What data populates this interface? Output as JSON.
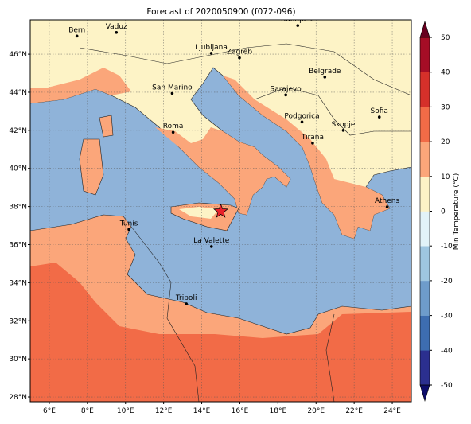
{
  "map": {
    "title": "Forecast of 2020050900 (f072-096)",
    "xlim": [
      5,
      25
    ],
    "ylim": [
      27.75,
      47.8
    ],
    "xticks": [
      {
        "value": 6,
        "label": "6°E"
      },
      {
        "value": 8,
        "label": "8°E"
      },
      {
        "value": 10,
        "label": "10°E"
      },
      {
        "value": 12,
        "label": "12°E"
      },
      {
        "value": 14,
        "label": "14°E"
      },
      {
        "value": 16,
        "label": "16°E"
      },
      {
        "value": 18,
        "label": "18°E"
      },
      {
        "value": 20,
        "label": "20°E"
      },
      {
        "value": 22,
        "label": "22°E"
      },
      {
        "value": 24,
        "label": "24°E"
      }
    ],
    "yticks": [
      {
        "value": 28,
        "label": "28°N"
      },
      {
        "value": 30,
        "label": "30°N"
      },
      {
        "value": 32,
        "label": "32°N"
      },
      {
        "value": 34,
        "label": "34°N"
      },
      {
        "value": 36,
        "label": "36°N"
      },
      {
        "value": 38,
        "label": "38°N"
      },
      {
        "value": 40,
        "label": "40°N"
      },
      {
        "value": 42,
        "label": "42°N"
      },
      {
        "value": 44,
        "label": "44°N"
      },
      {
        "value": 46,
        "label": "46°N"
      }
    ],
    "grid": true,
    "cities": [
      {
        "name": "Bern",
        "lon": 7.45,
        "lat": 46.95
      },
      {
        "name": "Vaduz",
        "lon": 9.52,
        "lat": 47.14
      },
      {
        "name": "Budapest",
        "lon": 19.04,
        "lat": 47.5
      },
      {
        "name": "Ljubljana",
        "lon": 14.5,
        "lat": 46.05
      },
      {
        "name": "Zagreb",
        "lon": 15.98,
        "lat": 45.81
      },
      {
        "name": "Belgrade",
        "lon": 20.46,
        "lat": 44.8
      },
      {
        "name": "Sarajevo",
        "lon": 18.41,
        "lat": 43.86
      },
      {
        "name": "San Marino",
        "lon": 12.45,
        "lat": 43.94
      },
      {
        "name": "Podgorica",
        "lon": 19.26,
        "lat": 42.44
      },
      {
        "name": "Skopje",
        "lon": 21.43,
        "lat": 42.0
      },
      {
        "name": "Sofia",
        "lon": 23.32,
        "lat": 42.7
      },
      {
        "name": "Roma",
        "lon": 12.5,
        "lat": 41.9
      },
      {
        "name": "Tirana",
        "lon": 19.82,
        "lat": 41.33
      },
      {
        "name": "Athens",
        "lon": 23.73,
        "lat": 37.98
      },
      {
        "name": "Tunis",
        "lon": 10.18,
        "lat": 36.8
      },
      {
        "name": "La Valette",
        "lon": 14.51,
        "lat": 35.9
      },
      {
        "name": "Tripoli",
        "lon": 13.19,
        "lat": 32.89
      }
    ],
    "marker": {
      "lon": 15.0,
      "lat": 37.75,
      "color": "#e8202a"
    },
    "colorbar": {
      "label": "Min Temperature (°C)",
      "lim": [
        -50,
        50
      ],
      "ticks": [
        -50,
        -40,
        -30,
        -20,
        -10,
        0,
        10,
        20,
        30,
        40,
        50
      ],
      "colors": [
        "#2b2f8f",
        "#3d6db0",
        "#6e9ccb",
        "#9ec6e0",
        "#e2f3f8",
        "#fdf3c6",
        "#fba67a",
        "#f26b47",
        "#d5302a",
        "#a50d26"
      ],
      "under": "#0d0d6b",
      "over": "#67001f"
    }
  }
}
